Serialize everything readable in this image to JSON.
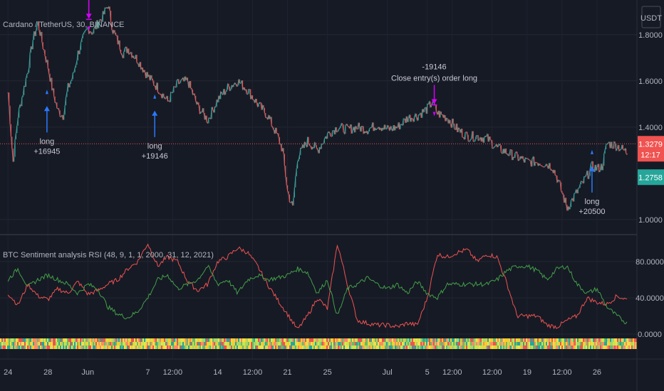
{
  "chart_data": {
    "type": "line",
    "symbol_title": "Cardano / TetherUS, 30, BINANCE",
    "quote_currency": "USDT",
    "price_axis": {
      "ticks": [
        "1.8000",
        "1.6000",
        "1.4000",
        "1.0000"
      ],
      "tick_values": [
        1.8,
        1.6,
        1.4,
        1.0
      ],
      "ylim": [
        0.935,
        1.95
      ]
    },
    "price_tags": [
      {
        "label": "1.3279",
        "value": 1.3279,
        "color": "#f05350",
        "role": "last-price"
      },
      {
        "label": "12:17",
        "color": "#f05350",
        "role": "countdown"
      },
      {
        "label": "1.2758",
        "value": 1.2758,
        "color": "#26a69a",
        "role": "other-price"
      }
    ],
    "last_price_line": 1.3279,
    "x_axis": {
      "labels": [
        "24",
        "28",
        "Jun",
        "7",
        "12:00",
        "14",
        "12:00",
        "21",
        "25",
        "Jul",
        "5",
        "12:00",
        "12:00",
        "19",
        "12:00",
        "26"
      ],
      "day_index": [
        0,
        4,
        8,
        14,
        16.5,
        21,
        24.5,
        28,
        32,
        38,
        42,
        44.5,
        48.5,
        52,
        55.5,
        59
      ],
      "range": [
        -0.8,
        63
      ]
    },
    "price_series": {
      "x": [
        0,
        0.5,
        1,
        1.5,
        2,
        2.5,
        3,
        3.5,
        4,
        4.5,
        5,
        5.5,
        6,
        6.5,
        7,
        7.5,
        8,
        8.5,
        9,
        9.5,
        10,
        10.5,
        11,
        11.5,
        12,
        13,
        14,
        15,
        16,
        17,
        18,
        19,
        20,
        21,
        22,
        23,
        24,
        25,
        26,
        27,
        27.5,
        28,
        28.5,
        29,
        30,
        31,
        32,
        33,
        34,
        35,
        36,
        37,
        38,
        39,
        40,
        41,
        42,
        42.5,
        43,
        44,
        45,
        46,
        47,
        48,
        49,
        50,
        51,
        52,
        53,
        54,
        54.5,
        55,
        56,
        57,
        58,
        58.5,
        59,
        59.5,
        60,
        61,
        62
      ],
      "y": [
        1.55,
        1.25,
        1.45,
        1.55,
        1.65,
        1.78,
        1.85,
        1.75,
        1.66,
        1.55,
        1.47,
        1.45,
        1.57,
        1.62,
        1.72,
        1.78,
        1.83,
        1.81,
        1.85,
        1.88,
        1.93,
        1.82,
        1.77,
        1.72,
        1.74,
        1.69,
        1.62,
        1.57,
        1.51,
        1.59,
        1.6,
        1.49,
        1.43,
        1.52,
        1.57,
        1.6,
        1.56,
        1.5,
        1.45,
        1.36,
        1.3,
        1.12,
        1.05,
        1.27,
        1.34,
        1.3,
        1.37,
        1.4,
        1.39,
        1.4,
        1.39,
        1.41,
        1.39,
        1.4,
        1.44,
        1.45,
        1.48,
        1.51,
        1.46,
        1.44,
        1.39,
        1.36,
        1.36,
        1.35,
        1.31,
        1.29,
        1.27,
        1.25,
        1.25,
        1.24,
        1.23,
        1.18,
        1.05,
        1.12,
        1.19,
        1.23,
        1.22,
        1.23,
        1.33,
        1.32,
        1.29
      ]
    },
    "trades": [
      {
        "type": "entry",
        "x": 3.9,
        "y": 1.5,
        "labels": [
          "long",
          "+16945"
        ]
      },
      {
        "type": "exit",
        "x": 8.1,
        "y": 1.86,
        "labels": [
          "Close entry(s) order long"
        ]
      },
      {
        "type": "entry",
        "x": 14.7,
        "y": 1.48,
        "labels": [
          "long",
          "+19146"
        ]
      },
      {
        "type": "exit",
        "x": 42.7,
        "y": 1.49,
        "labels": [
          "-19146",
          "Close entry(s) order long"
        ]
      },
      {
        "type": "entry",
        "x": 58.5,
        "y": 1.24,
        "labels": [
          "long",
          "+20500"
        ]
      }
    ],
    "indicator": {
      "title": "BTC Sentiment analysis RSI (48, 9, 1, 1, 2000, 31, 12, 2021)",
      "ticks": [
        "80.0000",
        "40.0000",
        "0.0000"
      ],
      "tick_values": [
        80,
        40,
        0
      ],
      "ylim": [
        0,
        105
      ],
      "series": [
        {
          "color": "#ef5350",
          "x": [
            0,
            1,
            2,
            3,
            4,
            5,
            6,
            7,
            8,
            9,
            10,
            11,
            12,
            13,
            14,
            15,
            16,
            17,
            18,
            19,
            20,
            21,
            22,
            23,
            24,
            25,
            26,
            27,
            28,
            29,
            30,
            31,
            32,
            33,
            34,
            35,
            36,
            37,
            38,
            39,
            40,
            41,
            42,
            43,
            44,
            45,
            46,
            47,
            48,
            49,
            50,
            51,
            52,
            53,
            54,
            55,
            56,
            57,
            58,
            59,
            60,
            61,
            62
          ],
          "y": [
            45,
            32,
            55,
            42,
            38,
            50,
            45,
            58,
            44,
            48,
            55,
            60,
            72,
            80,
            100,
            75,
            85,
            80,
            58,
            48,
            55,
            80,
            85,
            95,
            90,
            75,
            55,
            38,
            22,
            5,
            20,
            40,
            28,
            100,
            55,
            15,
            12,
            10,
            10,
            8,
            12,
            10,
            40,
            88,
            85,
            90,
            93,
            80,
            88,
            85,
            55,
            20,
            20,
            20,
            10,
            8,
            15,
            20,
            40,
            35,
            33,
            42,
            38
          ]
        },
        {
          "color": "#43a047",
          "x": [
            0,
            1,
            2,
            3,
            4,
            5,
            6,
            7,
            8,
            9,
            10,
            11,
            12,
            13,
            14,
            15,
            16,
            17,
            18,
            19,
            20,
            21,
            22,
            23,
            24,
            25,
            26,
            27,
            28,
            29,
            30,
            31,
            32,
            33,
            34,
            35,
            36,
            37,
            38,
            39,
            40,
            41,
            42,
            43,
            44,
            45,
            46,
            47,
            48,
            49,
            50,
            51,
            52,
            53,
            54,
            55,
            56,
            57,
            58,
            59,
            60,
            61,
            62
          ],
          "y": [
            60,
            72,
            52,
            60,
            65,
            60,
            55,
            45,
            55,
            50,
            30,
            22,
            18,
            25,
            40,
            60,
            65,
            50,
            55,
            60,
            75,
            55,
            60,
            45,
            60,
            65,
            60,
            62,
            65,
            72,
            68,
            45,
            60,
            20,
            50,
            55,
            62,
            55,
            50,
            55,
            45,
            58,
            45,
            40,
            55,
            55,
            55,
            55,
            55,
            60,
            70,
            75,
            75,
            70,
            60,
            72,
            75,
            55,
            45,
            50,
            30,
            20,
            12
          ]
        }
      ]
    },
    "heat_strip_colors": [
      "#f0e04a",
      "#ef5350",
      "#66bb6a",
      "#26a69a",
      "#ffca28",
      "#a5d66b",
      "#ff8a65",
      "#c8e64a"
    ]
  }
}
